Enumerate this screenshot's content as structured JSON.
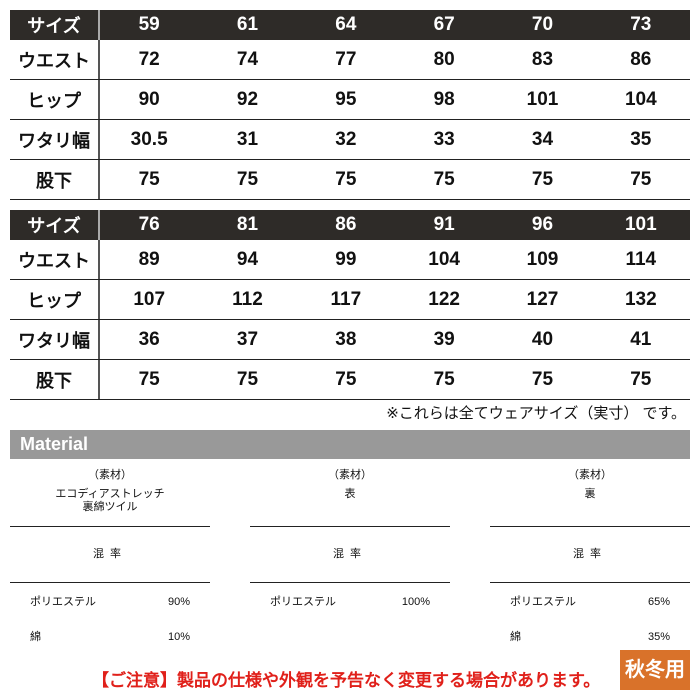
{
  "tables": [
    {
      "header": {
        "label": "サイズ",
        "values": [
          "59",
          "61",
          "64",
          "67",
          "70",
          "73"
        ]
      },
      "rows": [
        {
          "label": "ウエスト",
          "values": [
            "72",
            "74",
            "77",
            "80",
            "83",
            "86"
          ]
        },
        {
          "label": "ヒップ",
          "values": [
            "90",
            "92",
            "95",
            "98",
            "101",
            "104"
          ]
        },
        {
          "label": "ワタリ幅",
          "values": [
            "30.5",
            "31",
            "32",
            "33",
            "34",
            "35"
          ]
        },
        {
          "label": "股下",
          "values": [
            "75",
            "75",
            "75",
            "75",
            "75",
            "75"
          ]
        }
      ]
    },
    {
      "header": {
        "label": "サイズ",
        "values": [
          "76",
          "81",
          "86",
          "91",
          "96",
          "101"
        ]
      },
      "rows": [
        {
          "label": "ウエスト",
          "values": [
            "89",
            "94",
            "99",
            "104",
            "109",
            "114"
          ]
        },
        {
          "label": "ヒップ",
          "values": [
            "107",
            "112",
            "117",
            "122",
            "127",
            "132"
          ]
        },
        {
          "label": "ワタリ幅",
          "values": [
            "36",
            "37",
            "38",
            "39",
            "40",
            "41"
          ]
        },
        {
          "label": "股下",
          "values": [
            "75",
            "75",
            "75",
            "75",
            "75",
            "75"
          ]
        }
      ]
    }
  ],
  "note": "※これらは全てウェアサイズ（実寸） です。",
  "material": {
    "title": "Material",
    "columns": [
      {
        "tag": "（素材）",
        "name": "エコディアストレッチ\n裏綿ツイル",
        "mix": "混率",
        "items": [
          {
            "k": "ポリエステル",
            "v": "90%"
          },
          {
            "k": "綿",
            "v": "10%"
          }
        ]
      },
      {
        "tag": "（素材）",
        "name": "表",
        "mix": "混率",
        "items": [
          {
            "k": "ポリエステル",
            "v": "100%"
          }
        ]
      },
      {
        "tag": "（素材）",
        "name": "裏",
        "mix": "混率",
        "items": [
          {
            "k": "ポリエステル",
            "v": "65%"
          },
          {
            "k": "綿",
            "v": "35%"
          }
        ]
      }
    ]
  },
  "footer": "【ご注意】製品の仕様や外観を予告なく変更する場合があります。",
  "badge": "秋冬用",
  "colors": {
    "header": "#2e2b28",
    "material_bar": "#999999",
    "footer": "#e0201a",
    "badge": "#d9722a"
  }
}
